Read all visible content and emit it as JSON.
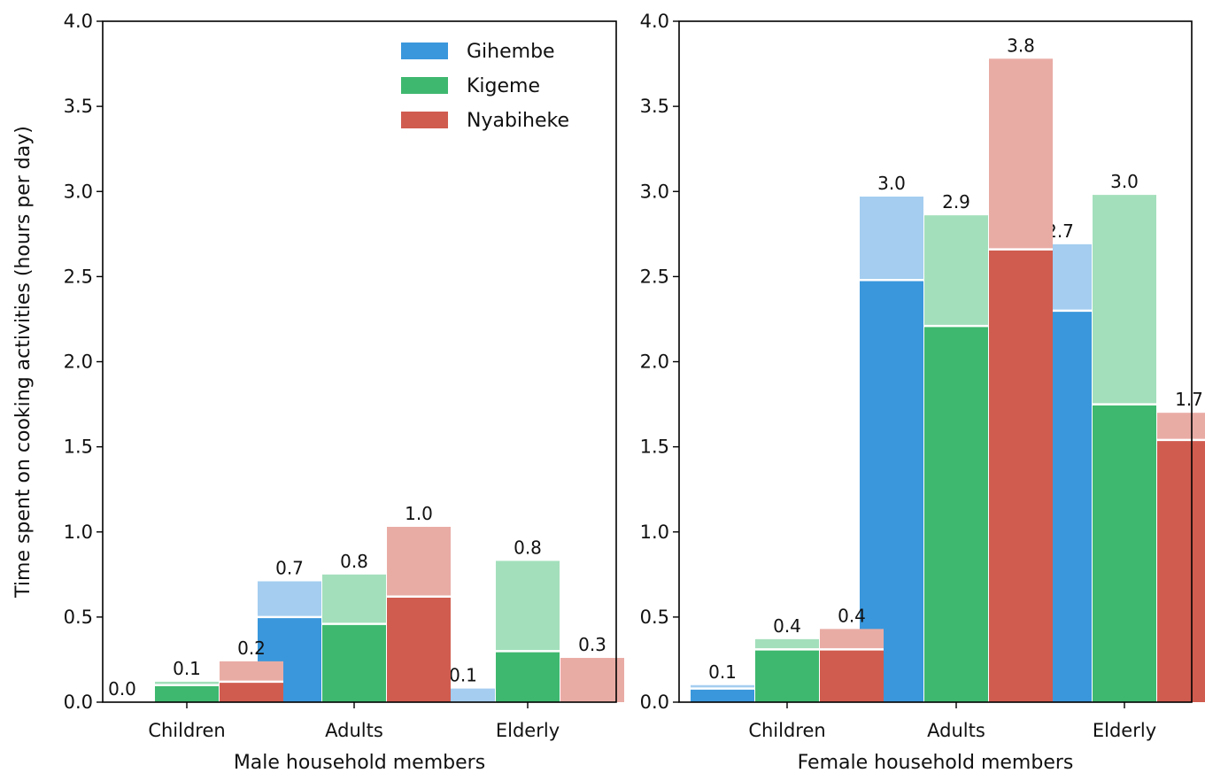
{
  "chart_data": [
    {
      "type": "bar",
      "stacked": true,
      "categories": [
        "Children",
        "Adults",
        "Elderly"
      ],
      "xlabel": "Male household members",
      "ylabel": "Time spent on cooking activities (hours per day)",
      "ylim": [
        0,
        4
      ],
      "yticks": [
        "0.0",
        "0.5",
        "1.0",
        "1.5",
        "2.0",
        "2.5",
        "3.0",
        "3.5",
        "4.0"
      ],
      "grid": false,
      "legend": {
        "position": "top-right"
      },
      "series": [
        {
          "name": "Gihembe",
          "color": "#3a97dc",
          "light_color": "#a4cdf0",
          "lower": [
            0.0,
            0.5,
            0.0
          ],
          "total": [
            0.0,
            0.71,
            0.08
          ],
          "labels": [
            "0.0",
            "0.7",
            "0.1"
          ]
        },
        {
          "name": "Kigeme",
          "color": "#3fb86f",
          "light_color": "#a3dfbb",
          "lower": [
            0.1,
            0.46,
            0.3
          ],
          "total": [
            0.12,
            0.75,
            0.83
          ],
          "labels": [
            "0.1",
            "0.8",
            "0.8"
          ]
        },
        {
          "name": "Nyabiheke",
          "color": "#d05c4f",
          "light_color": "#e9aca5",
          "lower": [
            0.12,
            0.62,
            0.0
          ],
          "total": [
            0.24,
            1.03,
            0.26
          ],
          "labels": [
            "0.2",
            "1.0",
            "0.3"
          ]
        }
      ]
    },
    {
      "type": "bar",
      "stacked": true,
      "categories": [
        "Children",
        "Adults",
        "Elderly"
      ],
      "xlabel": "Female household members",
      "ylabel": "",
      "ylim": [
        0,
        4
      ],
      "yticks": [
        "0.0",
        "0.5",
        "1.0",
        "1.5",
        "2.0",
        "2.5",
        "3.0",
        "3.5",
        "4.0"
      ],
      "grid": false,
      "series": [
        {
          "name": "Gihembe",
          "color": "#3a97dc",
          "light_color": "#a4cdf0",
          "lower": [
            0.08,
            2.48,
            2.3
          ],
          "total": [
            0.1,
            2.97,
            2.69
          ],
          "labels": [
            "0.1",
            "3.0",
            "2.7"
          ]
        },
        {
          "name": "Kigeme",
          "color": "#3fb86f",
          "light_color": "#a3dfbb",
          "lower": [
            0.31,
            2.21,
            1.75
          ],
          "total": [
            0.37,
            2.86,
            2.98
          ],
          "labels": [
            "0.4",
            "2.9",
            "3.0"
          ]
        },
        {
          "name": "Nyabiheke",
          "color": "#d05c4f",
          "light_color": "#e9aca5",
          "lower": [
            0.31,
            2.66,
            1.54
          ],
          "total": [
            0.43,
            3.78,
            1.7
          ],
          "labels": [
            "0.4",
            "3.8",
            "1.7"
          ]
        }
      ]
    }
  ]
}
